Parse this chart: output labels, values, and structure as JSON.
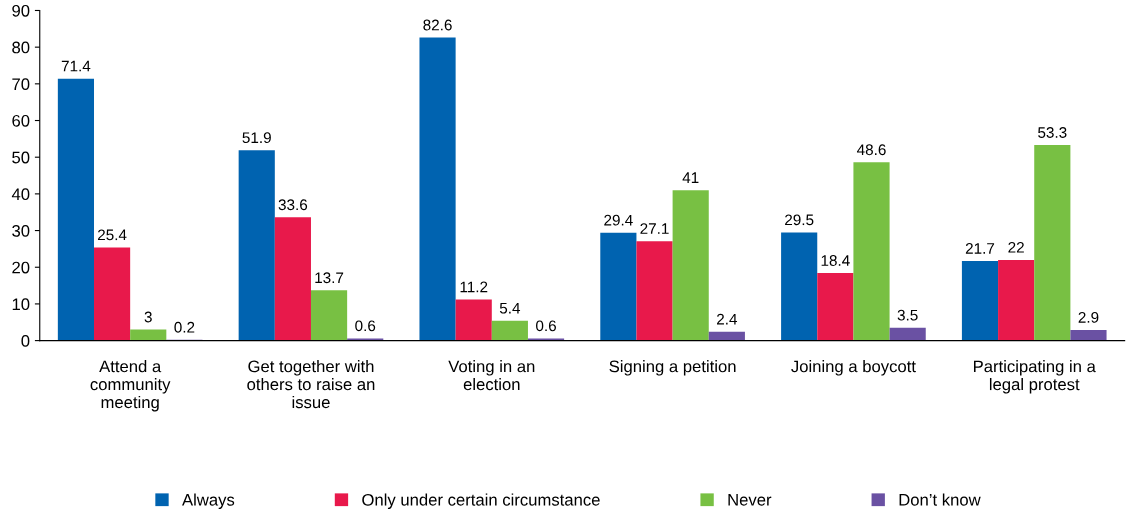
{
  "chart_data": {
    "type": "bar",
    "categories": [
      "Attend a\ncommunity\nmeeting",
      "Get together with\nothers to raise an\nissue",
      "Voting in an\nelection",
      "Signing a petition",
      "Joining a boycott",
      "Participating in a\nlegal protest"
    ],
    "series": [
      {
        "name": "Always",
        "color": "#0063b0",
        "values": [
          71.4,
          51.9,
          82.6,
          29.4,
          29.5,
          21.7
        ]
      },
      {
        "name": "Only under certain circumstance",
        "color": "#e8194b",
        "values": [
          25.4,
          33.6,
          11.2,
          27.1,
          18.4,
          22
        ]
      },
      {
        "name": "Never",
        "color": "#78c043",
        "values": [
          3,
          13.7,
          5.4,
          41,
          48.6,
          53.3
        ]
      },
      {
        "name": "Don’t know",
        "color": "#6a51a3",
        "values": [
          0.2,
          0.6,
          0.6,
          2.4,
          3.5,
          2.9
        ]
      }
    ],
    "ylim": [
      0,
      90
    ],
    "yticks": [
      0,
      10,
      20,
      30,
      40,
      50,
      60,
      70,
      80,
      90
    ],
    "data_labels": true,
    "grid": false,
    "legend": "bottom"
  }
}
